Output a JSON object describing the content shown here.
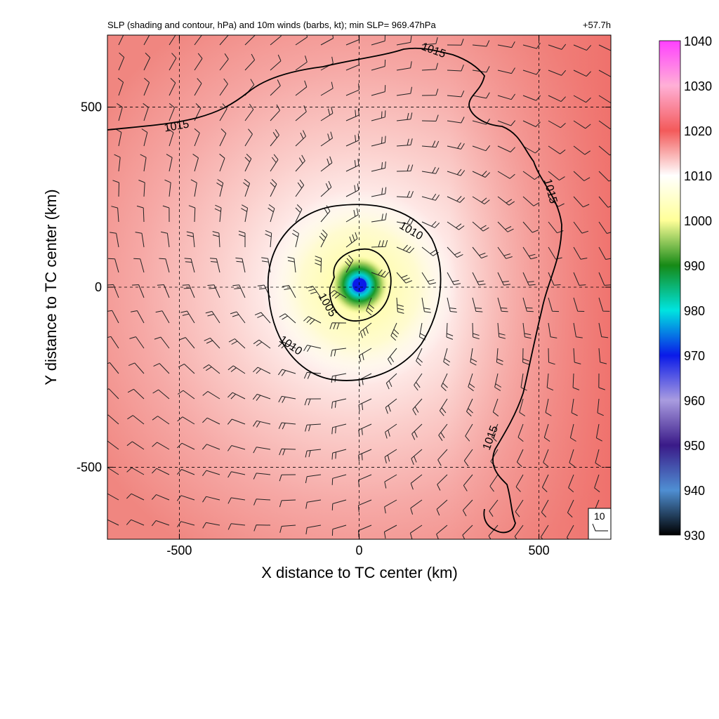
{
  "chart_data": {
    "type": "heatmap",
    "title": "SLP (shading and contour, hPa) and 10m winds (barbs, kt); min SLP= 969.47hPa",
    "lead_time": "+57.7h",
    "xlabel": "X distance to TC center (km)",
    "ylabel": "Y distance to TC center (km)",
    "xlim": [
      -700,
      700
    ],
    "ylim": [
      -700,
      700
    ],
    "x_ticks": [
      -500,
      0,
      500
    ],
    "y_ticks": [
      -500,
      0,
      500
    ],
    "x_tick_labels": [
      "-500",
      "0",
      "500"
    ],
    "y_tick_labels": [
      "-500",
      "0",
      "500"
    ],
    "grid": true,
    "min_slp_hpa": 969.47,
    "center_km": [
      0,
      0
    ],
    "colorbar": {
      "min": 930,
      "max": 1040,
      "ticks": [
        930,
        940,
        950,
        960,
        970,
        980,
        990,
        1000,
        1010,
        1020,
        1030,
        1040
      ],
      "tick_labels": [
        "930",
        "940",
        "950",
        "960",
        "970",
        "980",
        "990",
        "1000",
        "1010",
        "1020",
        "1030",
        "1040"
      ],
      "colors": [
        {
          "v": 930,
          "c": "#000000"
        },
        {
          "v": 940,
          "c": "#4f8fd3"
        },
        {
          "v": 950,
          "c": "#3a1a88"
        },
        {
          "v": 960,
          "c": "#a99ce0"
        },
        {
          "v": 970,
          "c": "#0a1ae8"
        },
        {
          "v": 980,
          "c": "#00e4e0"
        },
        {
          "v": 990,
          "c": "#168a16"
        },
        {
          "v": 1000,
          "c": "#ffff98"
        },
        {
          "v": 1010,
          "c": "#ffffff"
        },
        {
          "v": 1020,
          "c": "#f35a5a"
        },
        {
          "v": 1030,
          "c": "#ffb0d6"
        },
        {
          "v": 1040,
          "c": "#ff40ff"
        }
      ]
    },
    "contours": [
      {
        "level": 1005,
        "label": "1005",
        "label_pos_km": [
          -95,
          -30
        ]
      },
      {
        "level": 1010,
        "label": "1010",
        "label_pos_km": [
          175,
          140
        ]
      },
      {
        "level": 1010,
        "label": "1010",
        "label_pos_km": [
          -160,
          -185
        ]
      },
      {
        "level": 1015,
        "label": "1015",
        "label_pos_km": [
          -450,
          470
        ]
      },
      {
        "level": 1015,
        "label": "1015",
        "label_pos_km": [
          220,
          645
        ]
      },
      {
        "level": 1015,
        "label": "1015",
        "label_pos_km": [
          520,
          300
        ]
      },
      {
        "level": 1015,
        "label": "1015",
        "label_pos_km": [
          380,
          -430
        ]
      }
    ],
    "wind_barb_reference": {
      "label": "10",
      "units": "kt"
    }
  }
}
